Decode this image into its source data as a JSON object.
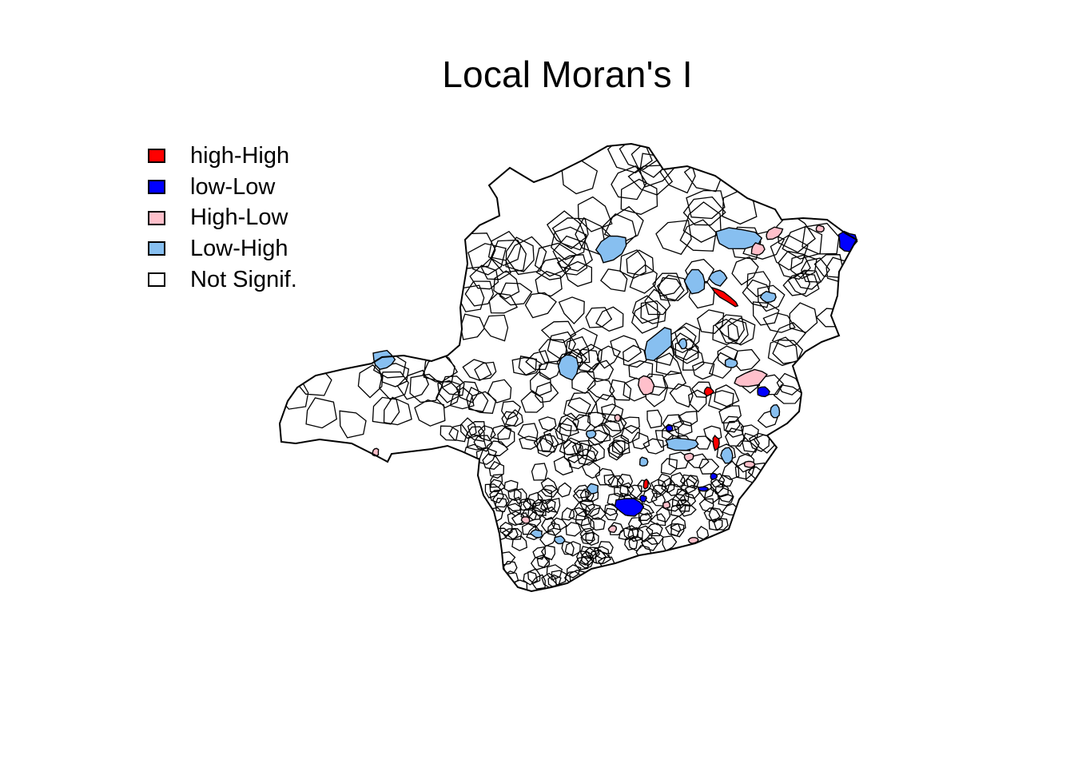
{
  "title": "Local Moran's I",
  "legend": {
    "items": [
      {
        "key": "hH",
        "label": "high-High",
        "color": "#ff0000"
      },
      {
        "key": "lL",
        "label": "low-Low",
        "color": "#0000ff"
      },
      {
        "key": "HL",
        "label": "High-Low",
        "color": "#ffc0cb"
      },
      {
        "key": "LH",
        "label": "Low-High",
        "color": "#87bff0"
      },
      {
        "key": "NS",
        "label": "Not Signif.",
        "color": "#ffffff"
      }
    ]
  },
  "map": {
    "region_outline_color": "#000000",
    "background": "#ffffff"
  }
}
